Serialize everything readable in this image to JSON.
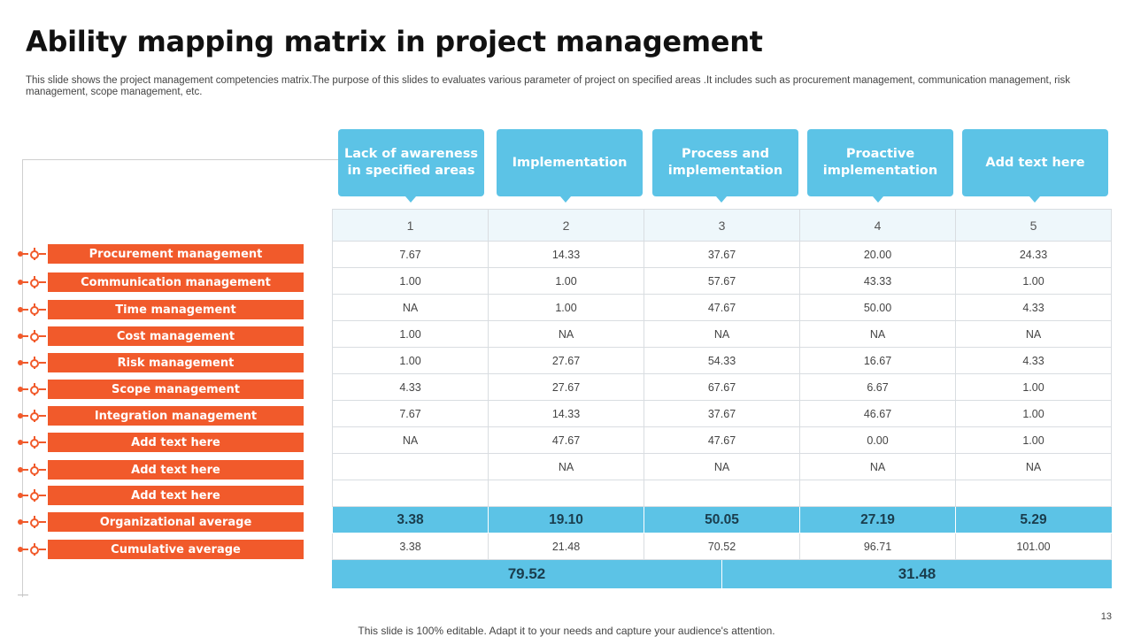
{
  "slide": {
    "title": "Ability mapping matrix in project management",
    "description": "This slide shows the project management competencies matrix.The purpose of this slides to evaluates various parameter of project on specified areas  .It includes such as procurement management, communication management, risk management, scope management, etc.",
    "footer": "This slide is 100% editable. Adapt it to your needs and capture your audience's attention.",
    "page_number": "13"
  },
  "colors": {
    "header_blue": "#5cc3e6",
    "label_orange": "#f15a2b"
  },
  "columns": [
    {
      "header": "Lack of awareness in specified areas",
      "number": "1"
    },
    {
      "header": "Implementation",
      "number": "2"
    },
    {
      "header": "Process and implementation",
      "number": "3"
    },
    {
      "header": "Proactive implementation",
      "number": "4"
    },
    {
      "header": "Add text here",
      "number": "5"
    }
  ],
  "rows": [
    {
      "label": "Procurement management",
      "values": [
        "7.67",
        "14.33",
        "37.67",
        "20.00",
        "24.33"
      ]
    },
    {
      "label": "Communication management",
      "values": [
        "1.00",
        "1.00",
        "57.67",
        "43.33",
        "1.00"
      ]
    },
    {
      "label": "Time management",
      "values": [
        "NA",
        "1.00",
        "47.67",
        "50.00",
        "4.33"
      ]
    },
    {
      "label": "Cost management",
      "values": [
        "1.00",
        "NA",
        "NA",
        "NA",
        "NA"
      ]
    },
    {
      "label": "Risk management",
      "values": [
        "1.00",
        "27.67",
        "54.33",
        "16.67",
        "4.33"
      ]
    },
    {
      "label": "Scope management",
      "values": [
        "4.33",
        "27.67",
        "67.67",
        "6.67",
        "1.00"
      ]
    },
    {
      "label": "Integration management",
      "values": [
        "7.67",
        "14.33",
        "37.67",
        "46.67",
        "1.00"
      ]
    },
    {
      "label": "Add text here",
      "values": [
        "NA",
        "47.67",
        "47.67",
        "0.00",
        "1.00"
      ]
    },
    {
      "label": "Add text here",
      "values": [
        "",
        "NA",
        "NA",
        "NA",
        "NA"
      ]
    },
    {
      "label": "Add text here",
      "values": [
        "",
        "",
        "",
        "",
        ""
      ]
    }
  ],
  "organizational_average": {
    "label": "Organizational average",
    "values": [
      "3.38",
      "19.10",
      "50.05",
      "27.19",
      "5.29"
    ]
  },
  "cumulative_average": {
    "label": "Cumulative average",
    "values": [
      "3.38",
      "21.48",
      "70.52",
      "96.71",
      "101.00"
    ]
  },
  "totals": [
    "79.52",
    "31.48"
  ]
}
